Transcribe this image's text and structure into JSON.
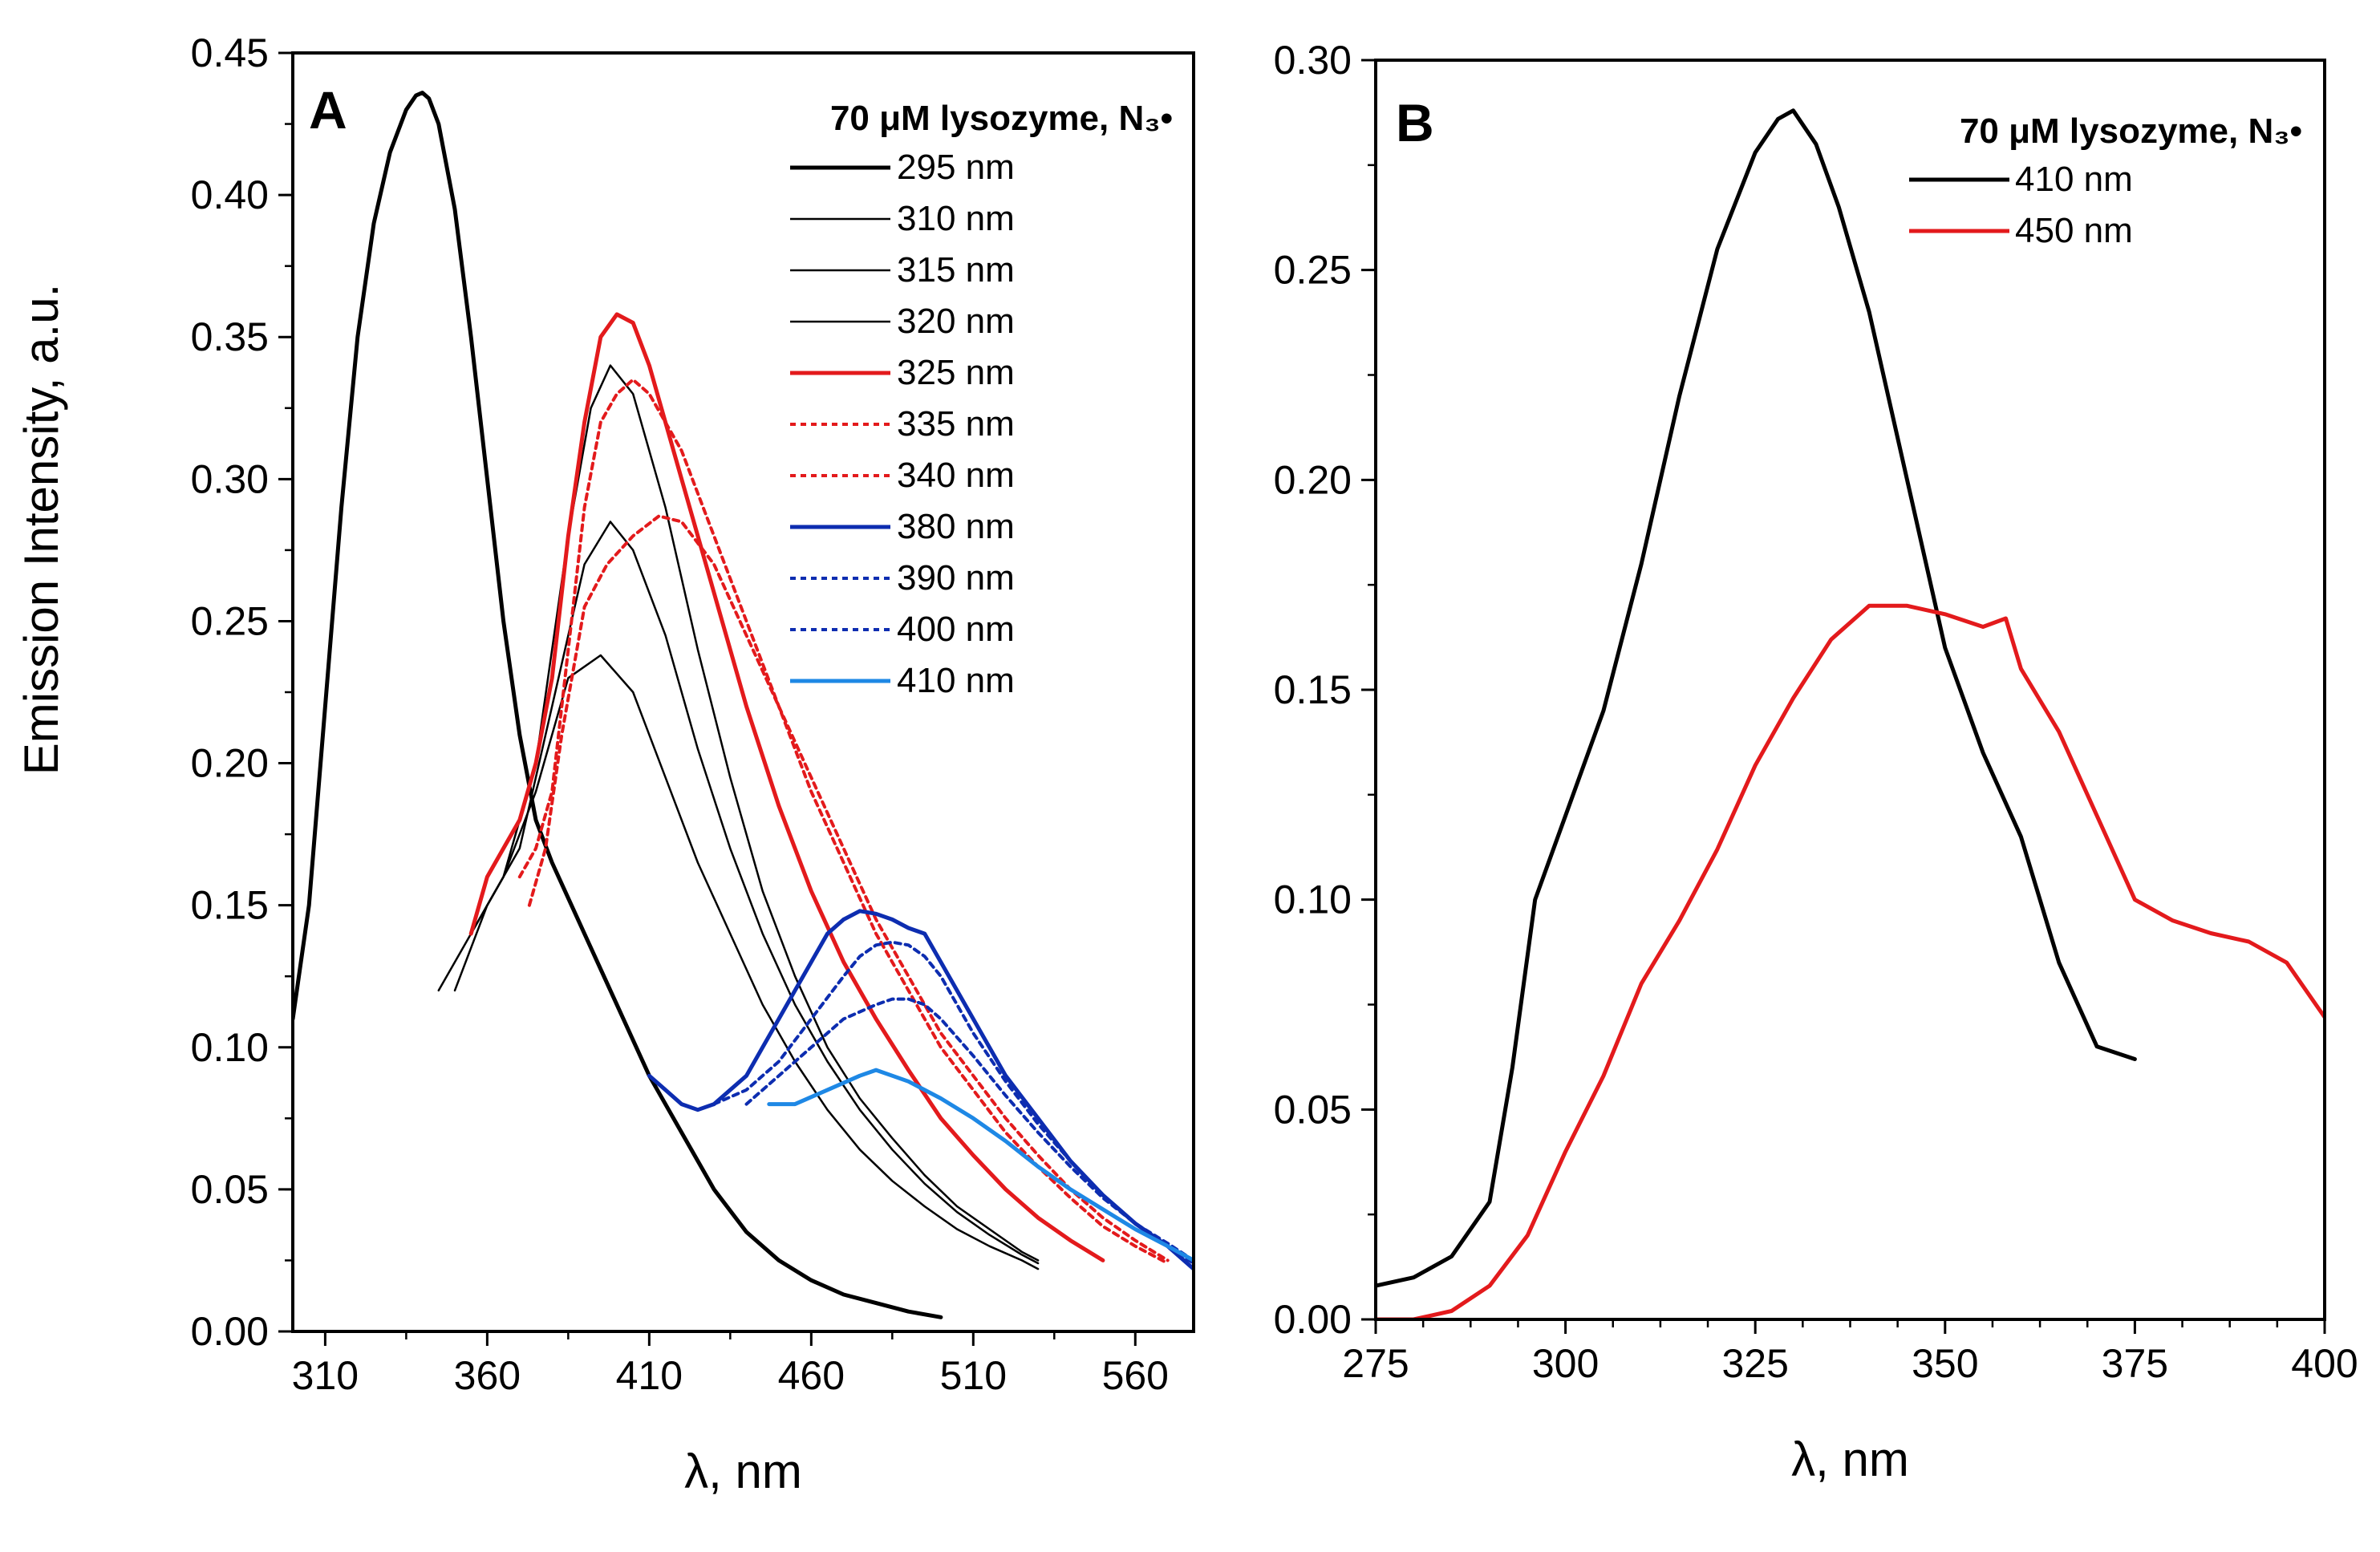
{
  "figure": {
    "y_axis_title": "Emission Intensity, a.u.",
    "x_axis_title": "λ, nm"
  },
  "chart_data": [
    {
      "type": "line",
      "panel_label": "A",
      "xlabel": "λ, nm",
      "ylabel": "Emission Intensity, a.u.",
      "xlim": [
        300,
        578
      ],
      "ylim": [
        0,
        0.45
      ],
      "xticks": [
        "310",
        "360",
        "410",
        "460",
        "510",
        "560"
      ],
      "yticks": [
        "0.00",
        "0.05",
        "0.10",
        "0.15",
        "0.20",
        "0.25",
        "0.30",
        "0.35",
        "0.40",
        "0.45"
      ],
      "legend_title": "70 μM lysozyme, N₃•",
      "legend_position": "top-right",
      "series": [
        {
          "name": "295 nm",
          "color": "#000000",
          "width": 5,
          "dash": "none",
          "x": [
            300,
            305,
            310,
            315,
            320,
            325,
            330,
            335,
            338,
            340,
            342,
            345,
            350,
            355,
            360,
            365,
            370,
            375,
            380,
            390,
            400,
            410,
            420,
            430,
            440,
            450,
            460,
            470,
            480,
            490,
            500
          ],
          "y": [
            0.11,
            0.15,
            0.22,
            0.29,
            0.35,
            0.39,
            0.415,
            0.43,
            0.435,
            0.436,
            0.434,
            0.425,
            0.395,
            0.35,
            0.3,
            0.25,
            0.21,
            0.18,
            0.165,
            0.14,
            0.115,
            0.09,
            0.07,
            0.05,
            0.035,
            0.025,
            0.018,
            0.013,
            0.01,
            0.007,
            0.005
          ]
        },
        {
          "name": "310 nm",
          "color": "#000000",
          "width": 2.5,
          "dash": "none",
          "x": [
            345,
            355,
            365,
            375,
            385,
            395,
            405,
            415,
            425,
            435,
            445,
            455,
            465,
            475,
            485,
            495,
            505,
            515,
            525,
            530
          ],
          "y": [
            0.12,
            0.14,
            0.16,
            0.19,
            0.23,
            0.238,
            0.225,
            0.195,
            0.165,
            0.14,
            0.115,
            0.095,
            0.078,
            0.064,
            0.053,
            0.044,
            0.036,
            0.03,
            0.025,
            0.022
          ]
        },
        {
          "name": "315 nm",
          "color": "#000000",
          "width": 2.5,
          "dash": "none",
          "x": [
            350,
            360,
            370,
            380,
            390,
            398,
            405,
            415,
            425,
            435,
            445,
            455,
            465,
            475,
            485,
            495,
            505,
            515,
            525,
            530
          ],
          "y": [
            0.12,
            0.15,
            0.17,
            0.22,
            0.27,
            0.285,
            0.275,
            0.245,
            0.205,
            0.17,
            0.14,
            0.115,
            0.095,
            0.078,
            0.064,
            0.052,
            0.042,
            0.034,
            0.027,
            0.024
          ]
        },
        {
          "name": "320 nm",
          "color": "#000000",
          "width": 2.5,
          "dash": "none",
          "x": [
            355,
            365,
            375,
            385,
            392,
            398,
            405,
            415,
            425,
            435,
            445,
            455,
            465,
            475,
            485,
            495,
            505,
            515,
            525,
            530
          ],
          "y": [
            0.14,
            0.16,
            0.2,
            0.28,
            0.325,
            0.34,
            0.33,
            0.29,
            0.24,
            0.195,
            0.155,
            0.125,
            0.1,
            0.082,
            0.068,
            0.055,
            0.044,
            0.036,
            0.028,
            0.025
          ]
        },
        {
          "name": "325 nm",
          "color": "#e31a1c",
          "width": 5,
          "dash": "none",
          "x": [
            355,
            360,
            365,
            370,
            375,
            380,
            385,
            390,
            395,
            400,
            405,
            410,
            420,
            430,
            440,
            450,
            460,
            470,
            480,
            490,
            500,
            510,
            520,
            530,
            540,
            550
          ],
          "y": [
            0.14,
            0.16,
            0.17,
            0.18,
            0.2,
            0.23,
            0.28,
            0.32,
            0.35,
            0.358,
            0.355,
            0.34,
            0.3,
            0.26,
            0.22,
            0.185,
            0.155,
            0.13,
            0.11,
            0.092,
            0.075,
            0.062,
            0.05,
            0.04,
            0.032,
            0.025
          ]
        },
        {
          "name": "335 nm",
          "color": "#e31a1c",
          "width": 4,
          "dash": "7 6",
          "x": [
            370,
            375,
            380,
            385,
            390,
            395,
            400,
            405,
            410,
            420,
            430,
            440,
            450,
            460,
            470,
            480,
            490,
            500,
            510,
            520,
            530,
            540,
            550,
            560,
            570
          ],
          "y": [
            0.16,
            0.17,
            0.19,
            0.24,
            0.29,
            0.32,
            0.33,
            0.335,
            0.33,
            0.31,
            0.28,
            0.25,
            0.22,
            0.19,
            0.165,
            0.14,
            0.12,
            0.1,
            0.085,
            0.07,
            0.058,
            0.047,
            0.037,
            0.03,
            0.024
          ]
        },
        {
          "name": "340 nm",
          "color": "#e31a1c",
          "width": 4,
          "dash": "7 6",
          "x": [
            373,
            378,
            383,
            390,
            397,
            405,
            413,
            420,
            430,
            440,
            450,
            460,
            470,
            480,
            490,
            500,
            510,
            520,
            530,
            540,
            550,
            560,
            570
          ],
          "y": [
            0.15,
            0.17,
            0.21,
            0.255,
            0.27,
            0.28,
            0.287,
            0.285,
            0.27,
            0.245,
            0.22,
            0.195,
            0.17,
            0.145,
            0.125,
            0.105,
            0.09,
            0.075,
            0.062,
            0.05,
            0.04,
            0.032,
            0.025
          ]
        },
        {
          "name": "380 nm",
          "color": "#0d2db0",
          "width": 5,
          "dash": "none",
          "x": [
            410,
            415,
            420,
            425,
            430,
            435,
            440,
            445,
            450,
            455,
            460,
            465,
            470,
            475,
            480,
            485,
            490,
            495,
            500,
            510,
            520,
            530,
            540,
            550,
            560,
            570,
            578
          ],
          "y": [
            0.09,
            0.085,
            0.08,
            0.078,
            0.08,
            0.085,
            0.09,
            0.1,
            0.11,
            0.12,
            0.13,
            0.14,
            0.145,
            0.148,
            0.147,
            0.145,
            0.142,
            0.14,
            0.13,
            0.11,
            0.09,
            0.075,
            0.06,
            0.048,
            0.038,
            0.03,
            0.022
          ]
        },
        {
          "name": "390 nm",
          "color": "#0d2db0",
          "width": 4,
          "dash": "7 6",
          "x": [
            430,
            440,
            450,
            460,
            470,
            475,
            480,
            485,
            490,
            495,
            500,
            510,
            520,
            530,
            540,
            550,
            560,
            570,
            578
          ],
          "y": [
            0.08,
            0.085,
            0.095,
            0.11,
            0.125,
            0.132,
            0.136,
            0.137,
            0.136,
            0.132,
            0.125,
            0.105,
            0.088,
            0.073,
            0.06,
            0.048,
            0.038,
            0.03,
            0.024
          ]
        },
        {
          "name": "400 nm",
          "color": "#0d2db0",
          "width": 4,
          "dash": "7 6",
          "x": [
            440,
            450,
            460,
            470,
            480,
            485,
            490,
            495,
            500,
            510,
            520,
            530,
            540,
            550,
            560,
            570,
            578
          ],
          "y": [
            0.08,
            0.09,
            0.1,
            0.11,
            0.115,
            0.117,
            0.117,
            0.115,
            0.11,
            0.097,
            0.083,
            0.07,
            0.058,
            0.047,
            0.038,
            0.031,
            0.025
          ]
        },
        {
          "name": "410 nm",
          "color": "#1e88e5",
          "width": 5,
          "dash": "none",
          "x": [
            447,
            455,
            465,
            475,
            480,
            485,
            490,
            500,
            510,
            520,
            530,
            540,
            550,
            560,
            570,
            578
          ],
          "y": [
            0.08,
            0.08,
            0.085,
            0.09,
            0.092,
            0.09,
            0.088,
            0.082,
            0.075,
            0.067,
            0.058,
            0.05,
            0.043,
            0.036,
            0.03,
            0.025
          ]
        }
      ]
    },
    {
      "type": "line",
      "panel_label": "B",
      "xlabel": "λ, nm",
      "ylabel": "",
      "xlim": [
        275,
        400
      ],
      "ylim": [
        0,
        0.3
      ],
      "xticks": [
        "275",
        "300",
        "325",
        "350",
        "375",
        "400"
      ],
      "yticks": [
        "0.00",
        "0.05",
        "0.10",
        "0.15",
        "0.20",
        "0.25",
        "0.30"
      ],
      "legend_title": "70 μM lysozyme, N₃•",
      "legend_position": "top-right",
      "series": [
        {
          "name": "410 nm",
          "color": "#000000",
          "width": 5,
          "dash": "none",
          "x": [
            275,
            280,
            285,
            290,
            293,
            296,
            300,
            305,
            310,
            315,
            320,
            325,
            328,
            330,
            333,
            336,
            340,
            345,
            350,
            353,
            355,
            360,
            365,
            370,
            375
          ],
          "y": [
            0.008,
            0.01,
            0.015,
            0.028,
            0.06,
            0.1,
            0.12,
            0.145,
            0.18,
            0.22,
            0.255,
            0.278,
            0.286,
            0.288,
            0.28,
            0.265,
            0.24,
            0.2,
            0.16,
            0.145,
            0.135,
            0.115,
            0.085,
            0.065,
            0.062
          ]
        },
        {
          "name": "450 nm",
          "color": "#e31a1c",
          "width": 5,
          "dash": "none",
          "x": [
            275,
            280,
            285,
            290,
            295,
            300,
            305,
            310,
            315,
            320,
            325,
            330,
            335,
            340,
            345,
            350,
            355,
            358,
            360,
            365,
            370,
            375,
            380,
            385,
            390,
            395,
            400
          ],
          "y": [
            0,
            0,
            0.002,
            0.008,
            0.02,
            0.04,
            0.058,
            0.08,
            0.095,
            0.112,
            0.132,
            0.148,
            0.162,
            0.17,
            0.17,
            0.168,
            0.165,
            0.167,
            0.155,
            0.14,
            0.12,
            0.1,
            0.095,
            0.092,
            0.09,
            0.085,
            0.072
          ]
        }
      ]
    }
  ]
}
